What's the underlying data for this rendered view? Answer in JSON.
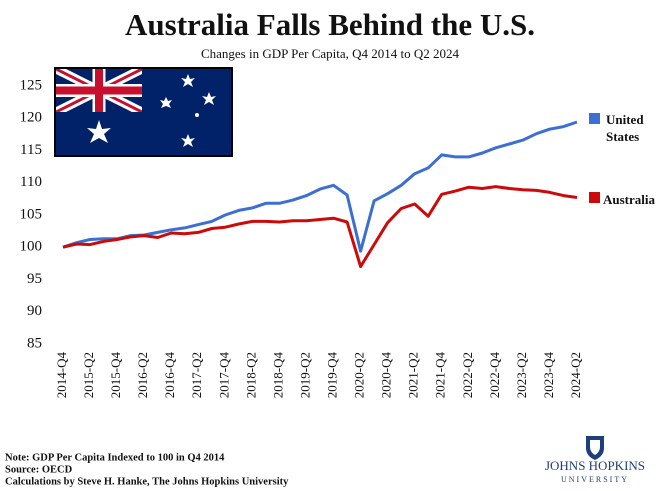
{
  "chart_data": {
    "type": "line",
    "title": "Australia Falls Behind the U.S.",
    "subtitle": "Changes in GDP Per Capita, Q4 2014 to Q2 2024",
    "categories": [
      "2014-Q4",
      null,
      "2015-Q2",
      null,
      "2015-Q4",
      null,
      "2016-Q2",
      null,
      "2016-Q4",
      null,
      "2017-Q2",
      null,
      "2017-Q4",
      null,
      "2018-Q2",
      null,
      "2018-Q4",
      null,
      "2019-Q2",
      null,
      "2019-Q4",
      null,
      "2020-Q2",
      null,
      "2020-Q4",
      null,
      "2021-Q2",
      null,
      "2021-Q4",
      null,
      "2022-Q2",
      null,
      "2022-Q4",
      null,
      "2023-Q2",
      null,
      "2023-Q4",
      null,
      "2024-Q2"
    ],
    "series": [
      {
        "name": "United States",
        "color": "#3d6fd3",
        "values": [
          100,
          100.7,
          101.2,
          101.3,
          101.3,
          101.8,
          101.9,
          102.3,
          102.7,
          103.0,
          103.5,
          104.0,
          105.0,
          105.7,
          106.1,
          106.8,
          106.8,
          107.3,
          108.0,
          109.0,
          109.6,
          108.1,
          99.4,
          107.2,
          108.3,
          109.6,
          111.4,
          112.3,
          114.3,
          114.0,
          114.0,
          114.6,
          115.4,
          116.0,
          116.6,
          117.6,
          118.3,
          118.7,
          119.4
        ]
      },
      {
        "name": "Australia",
        "color": "#cc0a0a",
        "values": [
          100,
          100.5,
          100.4,
          100.9,
          101.2,
          101.6,
          101.8,
          101.5,
          102.2,
          102.1,
          102.3,
          102.9,
          103.1,
          103.6,
          104.0,
          104.0,
          103.9,
          104.1,
          104.1,
          104.3,
          104.5,
          103.9,
          97.0,
          100.4,
          103.8,
          106.0,
          106.7,
          104.8,
          108.2,
          108.7,
          109.3,
          109.1,
          109.4,
          109.1,
          108.9,
          108.8,
          108.5,
          108.0,
          107.7
        ]
      }
    ],
    "ylim": [
      85,
      127
    ],
    "yticks": [
      85,
      90,
      95,
      100,
      105,
      110,
      115,
      120,
      125
    ],
    "grid": false,
    "notes": [
      "Note: GDP Per Capita Indexed to 100 in Q4 2014",
      "Source: OECD",
      "Calculations by Steve H. Hanke, The Johns Hopkins University"
    ],
    "logo": {
      "name": "JOHNS HOPKINS",
      "sub": "UNIVERSITY"
    }
  }
}
